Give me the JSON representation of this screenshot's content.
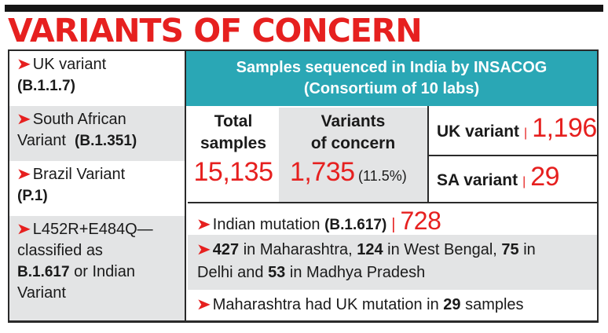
{
  "headline": "VARIANTS OF CONCERN",
  "left_list": [
    {
      "name": "UK variant",
      "code": "(B.1.1.7)"
    },
    {
      "name": "South African",
      "name2": "Variant",
      "code": "(B.1.351)"
    },
    {
      "name": "Brazil Variant",
      "code": "(P.1)"
    },
    {
      "lines": [
        "L452R+E484Q—",
        "classified as"
      ],
      "code": "B.1.617",
      "after_code": " or Indian",
      "last": "Variant"
    }
  ],
  "banner": {
    "line1": "Samples sequenced in India by INSACOG",
    "line2": "(Consortium of 10 labs)"
  },
  "total_samples": {
    "label1": "Total",
    "label2": "samples",
    "value": "15,135"
  },
  "variants_of_concern": {
    "label1": "Variants",
    "label2": "of concern",
    "value": "1,735",
    "percent": "(11.5%)"
  },
  "uk_variant": {
    "label": "UK variant",
    "value": "1,196"
  },
  "sa_variant": {
    "label": "SA variant",
    "value": "29"
  },
  "indian_mutation": {
    "label": "Indian mutation",
    "code": "(B.1.617)",
    "value": "728"
  },
  "state_breakdown": {
    "n1": "427",
    "t1": " in Maharashtra, ",
    "n2": "124",
    "t2": " in West Bengal, ",
    "n3": "75",
    "t3": " in",
    "t4": "Delhi and ",
    "n4": "53",
    "t5": " in Madhya Pradesh"
  },
  "maharashtra_note": {
    "text": "Maharashtra had UK mutation in ",
    "count": "29",
    "suffix": " samples"
  },
  "colors": {
    "accent_red": "#e6201f",
    "banner_teal": "#2aa7b5",
    "shade_gray": "#e3e4e5"
  },
  "icons": {
    "bullet": "red-arrow-bullet-icon"
  }
}
